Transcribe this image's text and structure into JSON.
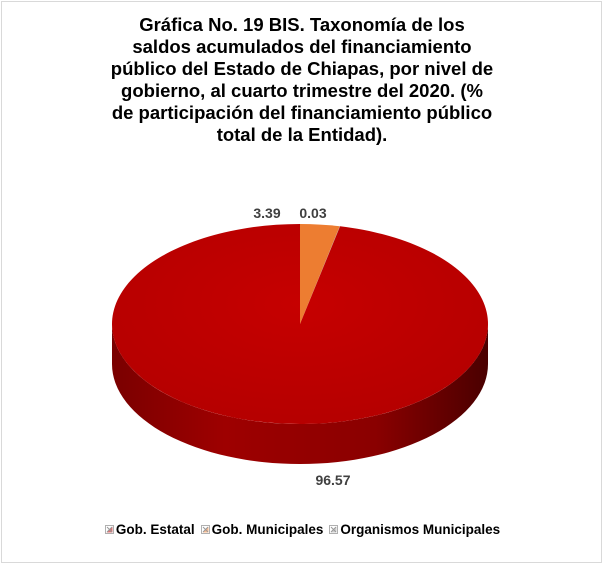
{
  "chart_data": {
    "type": "pie",
    "title": "Gráfica No. 19 BIS. Taxonomía de los saldos acumulados del financiamiento público del Estado de Chiapas, por nivel de gobierno, al cuarto trimestre del 2020. (% de participación del financiamiento público total de la Entidad).",
    "title_lines": [
      "Gráfica No. 19 BIS. Taxonomía de los",
      "saldos acumulados del financiamiento",
      "público del Estado de Chiapas, por nivel de",
      "gobierno, al cuarto trimestre del 2020. (%",
      "de participación del financiamiento público",
      "total de la Entidad)."
    ],
    "categories": [
      "Gob. Estatal",
      "Gob. Municipales",
      "Organismos Municipales"
    ],
    "values": [
      96.57,
      3.39,
      0.03
    ],
    "data_labels": [
      "96.57",
      "3.39",
      "0.03"
    ],
    "colors": [
      "#c00000",
      "#ed7d31",
      "#a5a5a5"
    ],
    "legend_position": "bottom",
    "style": "3d"
  }
}
